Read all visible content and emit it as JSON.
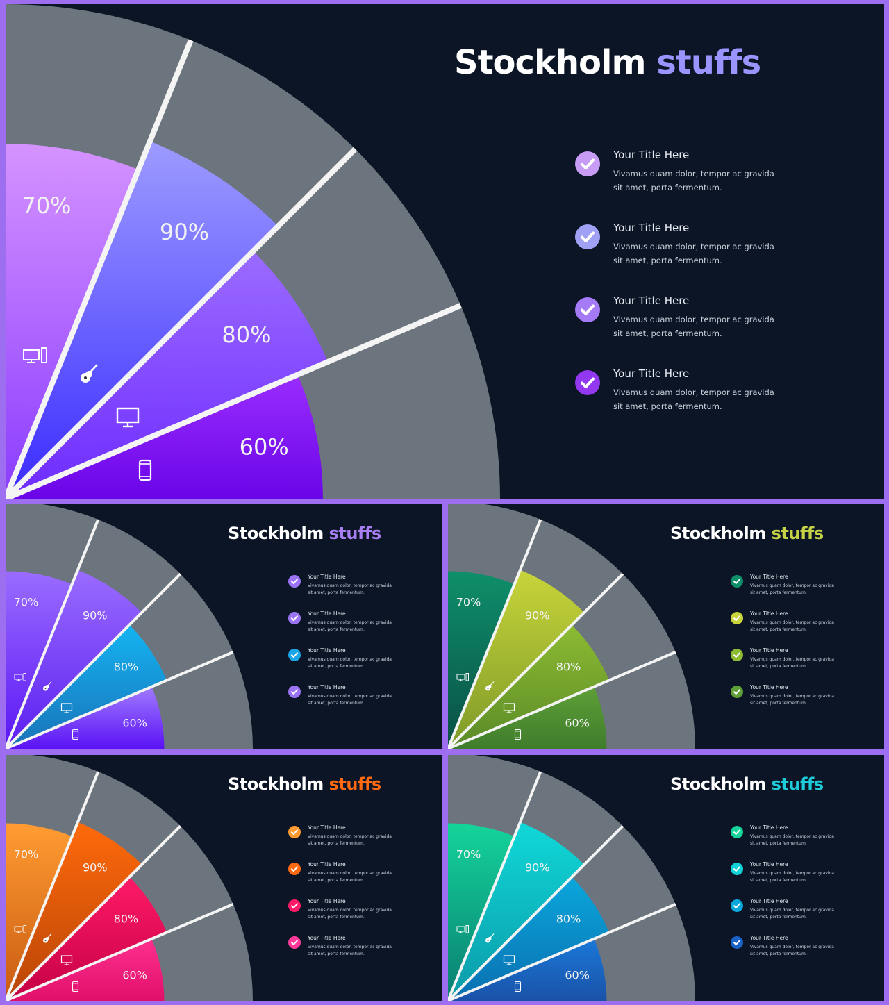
{
  "chart_data": [
    {
      "type": "pie",
      "title": "Stockholm stuffs",
      "title_parts": [
        "Stockholm",
        "stuffs"
      ],
      "accent": "#9b94ff",
      "segments": [
        {
          "label": "70%",
          "value": 70,
          "icon": "desktop-computer-icon",
          "c1": "#d593ff",
          "c2": "#8a3cff"
        },
        {
          "label": "90%",
          "value": 90,
          "icon": "guitar-icon",
          "c1": "#9d9bff",
          "c2": "#3a2bff"
        },
        {
          "label": "80%",
          "value": 80,
          "icon": "monitor-icon",
          "c1": "#9b6bff",
          "c2": "#6d2bff"
        },
        {
          "label": "60%",
          "value": 60,
          "icon": "smartphone-icon",
          "c1": "#9a2dff",
          "c2": "#6a05e8"
        }
      ],
      "items": [
        {
          "title": "Your Title Here",
          "desc1": "Vivamus quam dolor, tempor  ac gravida",
          "desc2": "sit amet, porta fermentum.",
          "color": "#c89bf5"
        },
        {
          "title": "Your Title Here",
          "desc1": "Vivamus quam dolor, tempor  ac gravida",
          "desc2": "sit amet, porta fermentum.",
          "color": "#a0a0f5"
        },
        {
          "title": "Your Title Here",
          "desc1": "Vivamus quam dolor, tempor  ac gravida",
          "desc2": "sit amet, porta fermentum.",
          "color": "#a47af7"
        },
        {
          "title": "Your Title Here",
          "desc1": "Vivamus quam dolor, tempor  ac gravida",
          "desc2": "sit amet, porta fermentum.",
          "color": "#9238f0"
        }
      ]
    },
    {
      "type": "pie",
      "title": "Stockholm stuffs",
      "title_parts": [
        "Stockholm",
        "stuffs"
      ],
      "accent": "#a77ff3",
      "segments": [
        {
          "label": "70%",
          "value": 70,
          "icon": "desktop-computer-icon",
          "c1": "#9a6cff",
          "c2": "#5a16f5"
        },
        {
          "label": "90%",
          "value": 90,
          "icon": "guitar-icon",
          "c1": "#9a6cff",
          "c2": "#5b1ff0"
        },
        {
          "label": "80%",
          "value": 80,
          "icon": "monitor-icon",
          "c1": "#14b4f2",
          "c2": "#1a72b8"
        },
        {
          "label": "60%",
          "value": 60,
          "icon": "smartphone-icon",
          "c1": "#a17bff",
          "c2": "#5a12f5"
        }
      ],
      "items": [
        {
          "title": "Your Title Here",
          "desc1": "Vivamus quam dolor, tempor  ac gravida",
          "desc2": "sit amet, porta fermentum.",
          "color": "#9b74f5"
        },
        {
          "title": "Your Title Here",
          "desc1": "Vivamus quam dolor, tempor  ac gravida",
          "desc2": "sit amet, porta fermentum.",
          "color": "#9b74f5"
        },
        {
          "title": "Your Title Here",
          "desc1": "Vivamus quam dolor, tempor  ac gravida",
          "desc2": "sit amet, porta fermentum.",
          "color": "#1aa6e6"
        },
        {
          "title": "Your Title Here",
          "desc1": "Vivamus quam dolor, tempor  ac gravida",
          "desc2": "sit amet, porta fermentum.",
          "color": "#9b74f5"
        }
      ]
    },
    {
      "type": "pie",
      "title": "Stockholm stuffs",
      "title_parts": [
        "Stockholm",
        "stuffs"
      ],
      "accent": "#c6d245",
      "segments": [
        {
          "label": "70%",
          "value": 70,
          "icon": "desktop-computer-icon",
          "c1": "#0e8f6a",
          "c2": "#0a4f45"
        },
        {
          "label": "90%",
          "value": 90,
          "icon": "guitar-icon",
          "c1": "#c8d43a",
          "c2": "#7d9a28"
        },
        {
          "label": "80%",
          "value": 80,
          "icon": "monitor-icon",
          "c1": "#8cbb32",
          "c2": "#5b8a28"
        },
        {
          "label": "60%",
          "value": 60,
          "icon": "smartphone-icon",
          "c1": "#5f9f37",
          "c2": "#3f7d2c"
        }
      ],
      "items": [
        {
          "title": "Your Title Here",
          "desc1": "Vivamus quam dolor, tempor  ac gravida",
          "desc2": "sit amet, porta fermentum.",
          "color": "#0e8f6a"
        },
        {
          "title": "Your Title Here",
          "desc1": "Vivamus quam dolor, tempor  ac gravida",
          "desc2": "sit amet, porta fermentum.",
          "color": "#c8d43a"
        },
        {
          "title": "Your Title Here",
          "desc1": "Vivamus quam dolor, tempor  ac gravida",
          "desc2": "sit amet, porta fermentum.",
          "color": "#8cbb32"
        },
        {
          "title": "Your Title Here",
          "desc1": "Vivamus quam dolor, tempor  ac gravida",
          "desc2": "sit amet, porta fermentum.",
          "color": "#5f9f37"
        }
      ]
    },
    {
      "type": "pie",
      "title": "Stockholm stuffs",
      "title_parts": [
        "Stockholm",
        "stuffs"
      ],
      "accent": "#ff6a10",
      "segments": [
        {
          "label": "70%",
          "value": 70,
          "icon": "desktop-computer-icon",
          "c1": "#ff9c32",
          "c2": "#c85a12"
        },
        {
          "label": "90%",
          "value": 90,
          "icon": "guitar-icon",
          "c1": "#ff6a0a",
          "c2": "#b84508"
        },
        {
          "label": "80%",
          "value": 80,
          "icon": "monitor-icon",
          "c1": "#ff1a68",
          "c2": "#c40044"
        },
        {
          "label": "60%",
          "value": 60,
          "icon": "smartphone-icon",
          "c1": "#ff2f90",
          "c2": "#e0106a"
        }
      ],
      "items": [
        {
          "title": "Your Title Here",
          "desc1": "Vivamus quam dolor, tempor  ac gravida",
          "desc2": "sit amet, porta fermentum.",
          "color": "#ff9a30"
        },
        {
          "title": "Your Title Here",
          "desc1": "Vivamus quam dolor, tempor  ac gravida",
          "desc2": "sit amet, porta fermentum.",
          "color": "#ff6a10"
        },
        {
          "title": "Your Title Here",
          "desc1": "Vivamus quam dolor, tempor  ac gravida",
          "desc2": "sit amet, porta fermentum.",
          "color": "#ff1a68"
        },
        {
          "title": "Your Title Here",
          "desc1": "Vivamus quam dolor, tempor  ac gravida",
          "desc2": "sit amet, porta fermentum.",
          "color": "#ff3a98"
        }
      ]
    },
    {
      "type": "pie",
      "title": "Stockholm stuffs",
      "title_parts": [
        "Stockholm",
        "stuffs"
      ],
      "accent": "#1ecbd8",
      "segments": [
        {
          "label": "70%",
          "value": 70,
          "icon": "desktop-computer-icon",
          "c1": "#14d49a",
          "c2": "#0a7d72"
        },
        {
          "label": "90%",
          "value": 90,
          "icon": "guitar-icon",
          "c1": "#10d8d8",
          "c2": "#0b9aa8"
        },
        {
          "label": "80%",
          "value": 80,
          "icon": "monitor-icon",
          "c1": "#0aa7dc",
          "c2": "#0a6fb0"
        },
        {
          "label": "60%",
          "value": 60,
          "icon": "smartphone-icon",
          "c1": "#1a78d8",
          "c2": "#1a52a8"
        }
      ],
      "items": [
        {
          "title": "Your Title Here",
          "desc1": "Vivamus quam dolor, tempor  ac gravida",
          "desc2": "sit amet, porta fermentum.",
          "color": "#14d49a"
        },
        {
          "title": "Your Title Here",
          "desc1": "Vivamus quam dolor, tempor  ac gravida",
          "desc2": "sit amet, porta fermentum.",
          "color": "#10d0d8"
        },
        {
          "title": "Your Title Here",
          "desc1": "Vivamus quam dolor, tempor  ac gravida",
          "desc2": "sit amet, porta fermentum.",
          "color": "#0aa7dc"
        },
        {
          "title": "Your Title Here",
          "desc1": "Vivamus quam dolor, tempor  ac gravida",
          "desc2": "sit amet, porta fermentum.",
          "color": "#1a62c8"
        }
      ]
    }
  ]
}
